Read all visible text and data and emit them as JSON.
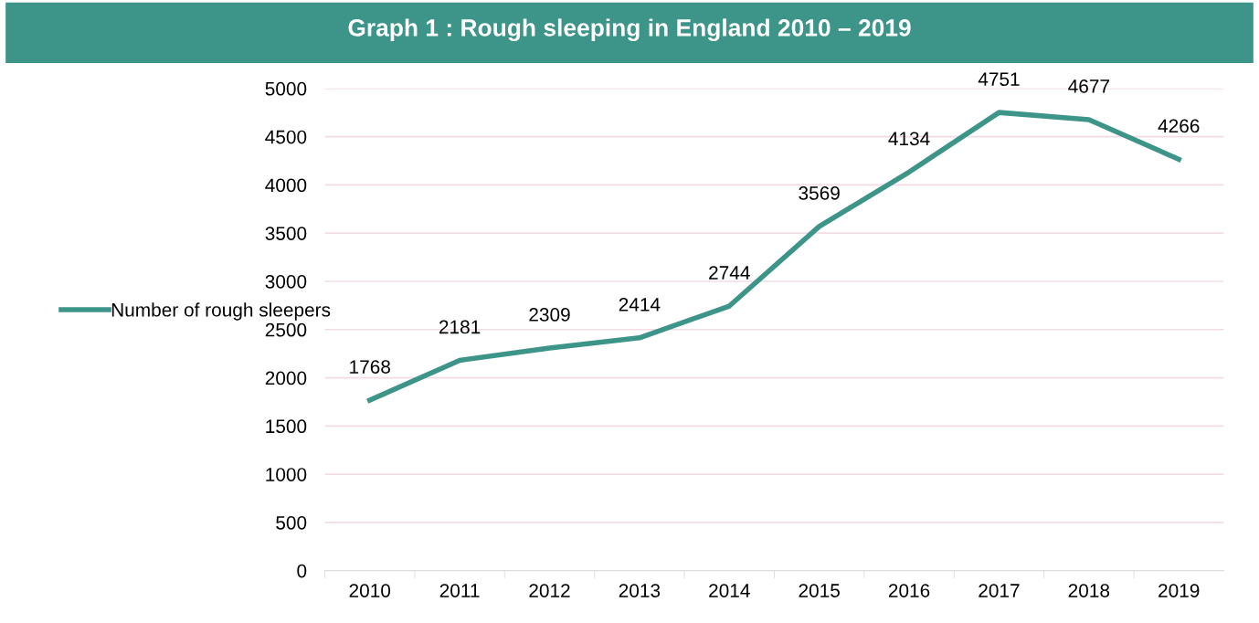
{
  "chart_data": {
    "type": "line",
    "title": "Graph 1 : Rough sleeping in England 2010 – 2019",
    "categories": [
      "2010",
      "2011",
      "2012",
      "2013",
      "2014",
      "2015",
      "2016",
      "2017",
      "2018",
      "2019"
    ],
    "series": [
      {
        "name": "Number of rough sleepers",
        "color": "#3d9488",
        "values": [
          1768,
          2181,
          2309,
          2414,
          2744,
          3569,
          4134,
          4751,
          4677,
          4266
        ]
      }
    ],
    "ylim": [
      0,
      5000
    ],
    "yticks": [
      0,
      500,
      1000,
      1500,
      2000,
      2500,
      3000,
      3500,
      4000,
      4500,
      5000
    ],
    "grid": "y",
    "legend": "left",
    "data_labels": true,
    "marker": "none",
    "line_style": "solid"
  }
}
